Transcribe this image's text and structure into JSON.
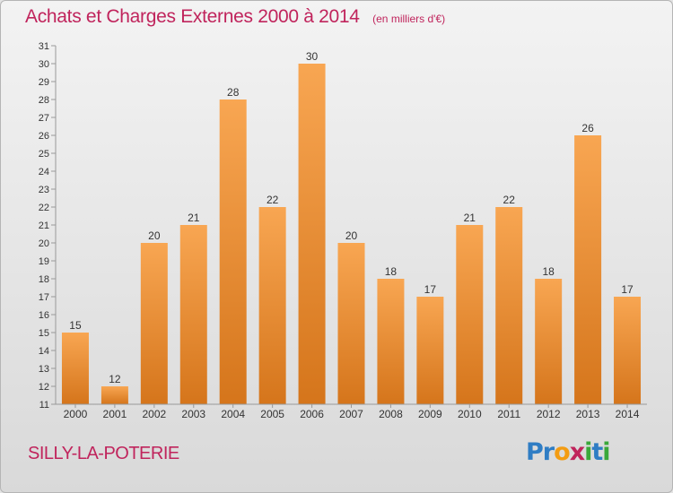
{
  "header": {
    "title": "Achats et Charges Externes 2000 à 2014",
    "unit": "(en milliers d'€)"
  },
  "footer": {
    "location": "SILLY-LA-POTERIE",
    "logo_letters": [
      {
        "char": "P",
        "color": "#2f7dc4"
      },
      {
        "char": "r",
        "color": "#2f7dc4"
      },
      {
        "char": "o",
        "color": "#f39c12"
      },
      {
        "char": "x",
        "color": "#c0245c"
      },
      {
        "char": "i",
        "color": "#3aa83a"
      },
      {
        "char": "t",
        "color": "#2f7dc4"
      },
      {
        "char": "i",
        "color": "#3aa83a"
      }
    ]
  },
  "colors": {
    "bar_top": "#f8a652",
    "bar_bottom": "#d5751b",
    "axis": "#999999",
    "text": "#333333",
    "accent": "#c0245c"
  },
  "chart_data": {
    "type": "bar",
    "categories": [
      "2000",
      "2001",
      "2002",
      "2003",
      "2004",
      "2005",
      "2006",
      "2007",
      "2008",
      "2009",
      "2010",
      "2011",
      "2012",
      "2013",
      "2014"
    ],
    "values": [
      15,
      12,
      20,
      21,
      28,
      22,
      30,
      20,
      18,
      17,
      21,
      22,
      18,
      26,
      17
    ],
    "ylim": [
      11,
      31
    ],
    "yticks": [
      11,
      12,
      13,
      14,
      15,
      16,
      17,
      18,
      19,
      20,
      21,
      22,
      23,
      24,
      25,
      26,
      27,
      28,
      29,
      30,
      31
    ],
    "grid": false
  }
}
